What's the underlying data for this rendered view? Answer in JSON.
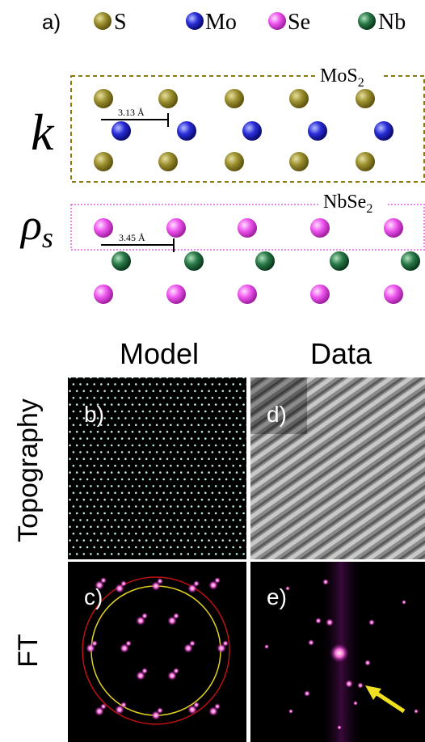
{
  "figure": {
    "panel_a": {
      "label": "a)",
      "legend": [
        "S",
        "Mo",
        "Se",
        "Nb"
      ],
      "top_layer": {
        "name": {
          "base": "MoS",
          "sub": "2"
        },
        "spacing": "3.13 Å",
        "symbol": "k"
      },
      "bottom_layer": {
        "name": {
          "base": "NbSe",
          "sub": "2"
        },
        "spacing": "3.45 Å",
        "symbol": {
          "base": "ρ",
          "sub": "s"
        }
      }
    },
    "columns": [
      "Model",
      "Data"
    ],
    "rows": [
      "Topography",
      "FT"
    ],
    "panels": [
      "b)",
      "c)",
      "d)",
      "e)"
    ]
  }
}
